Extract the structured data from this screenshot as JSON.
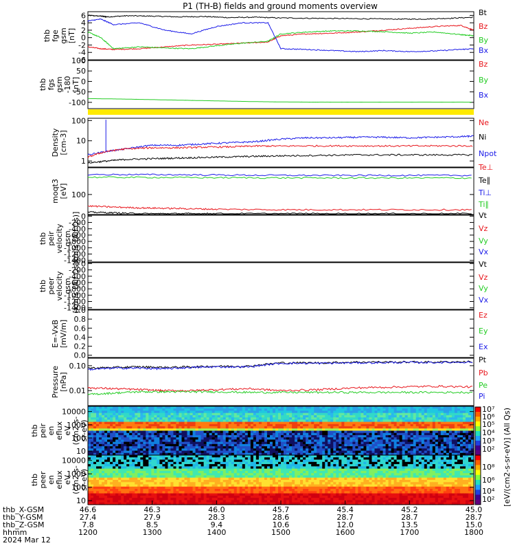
{
  "title": "P1 (TH-B) fields and ground moments overview",
  "colors": {
    "black": "#000000",
    "red": "#e8151b",
    "green": "#22cc22",
    "blue": "#1a1ae8",
    "yellow": "#ffea00"
  },
  "chart_data": [
    {
      "type": "line",
      "ylabel": [
        "thb",
        "fge",
        "gsm",
        "[nT]"
      ],
      "ylim": [
        -6,
        7
      ],
      "yticks": [
        "6",
        "4",
        "2",
        "0",
        "-2",
        "-4",
        "-6"
      ],
      "legend": [
        "Bt",
        "Bz",
        "By",
        "Bx"
      ],
      "series": [
        {
          "name": "Bt",
          "color": "black",
          "x": [
            1200,
            1220,
            1230,
            1260,
            1300,
            1340,
            1380,
            1420,
            1460,
            1500,
            1560,
            1620,
            1680,
            1720,
            1760,
            1800
          ],
          "values": [
            6.0,
            5.8,
            5.6,
            5.9,
            5.8,
            5.6,
            5.7,
            5.4,
            5.5,
            5.3,
            5.2,
            5.1,
            5.0,
            5.0,
            5.2,
            5.5
          ]
        },
        {
          "name": "Bz",
          "color": "red",
          "x": [
            1200,
            1220,
            1240,
            1280,
            1320,
            1360,
            1400,
            1440,
            1480,
            1500,
            1540,
            1580,
            1620,
            1660,
            1700,
            1740,
            1780,
            1800
          ],
          "values": [
            -2.5,
            -3.0,
            -3.2,
            -3.0,
            -2.5,
            -2.0,
            -1.8,
            -1.5,
            -1.2,
            0.5,
            1.0,
            1.2,
            1.5,
            2.0,
            2.5,
            3.0,
            3.3,
            2.0
          ]
        },
        {
          "name": "By",
          "color": "green",
          "x": [
            1200,
            1220,
            1240,
            1280,
            1320,
            1360,
            1400,
            1440,
            1480,
            1500,
            1540,
            1580,
            1620,
            1660,
            1700,
            1740,
            1780,
            1800
          ],
          "values": [
            1.5,
            0.0,
            -3.0,
            -2.5,
            -2.8,
            -3.0,
            -2.2,
            -1.5,
            -1.0,
            1.0,
            1.5,
            1.8,
            1.8,
            1.6,
            1.2,
            1.5,
            0.8,
            0.5
          ]
        },
        {
          "name": "Bx",
          "color": "blue",
          "x": [
            1200,
            1220,
            1240,
            1280,
            1320,
            1360,
            1400,
            1440,
            1480,
            1500,
            1540,
            1580,
            1620,
            1660,
            1700,
            1740,
            1780,
            1800
          ],
          "values": [
            4.5,
            5.0,
            3.5,
            4.0,
            2.0,
            1.0,
            3.0,
            4.0,
            4.0,
            -3.0,
            -3.2,
            -3.5,
            -3.8,
            -3.5,
            -3.8,
            -3.6,
            -3.2,
            -3.0
          ]
        }
      ]
    },
    {
      "type": "line",
      "ylabel": [
        "thb",
        "fgs",
        "gsm",
        "-180",
        "[nT]"
      ],
      "ylim": [
        -130,
        100
      ],
      "yticks": [
        "100",
        "50",
        "0",
        "-50",
        "-100"
      ],
      "legend": [
        "Bz",
        "By",
        "Bx"
      ],
      "series": [
        {
          "name": "By",
          "color": "green",
          "x": [
            1200,
            1250,
            1300,
            1350,
            1400,
            1450,
            1500,
            1550,
            1600,
            1700,
            1800
          ],
          "values": [
            -82,
            -84,
            -87,
            -90,
            -93,
            -96,
            -98,
            -99,
            -99,
            -99,
            -99
          ]
        }
      ]
    },
    {
      "type": "line",
      "ylabel": [
        "Density",
        "[cm-3]"
      ],
      "yscale": "log",
      "ylim": [
        0.5,
        130
      ],
      "yticks": [
        "100",
        "10",
        "1"
      ],
      "legend": [
        "Ne",
        "Ni",
        "Npot"
      ],
      "series": [
        {
          "name": "Npot",
          "color": "blue",
          "x": [
            1200,
            1230,
            1260,
            1300,
            1340,
            1380,
            1420,
            1460,
            1500,
            1540,
            1580,
            1620,
            1660,
            1700,
            1740,
            1780,
            1800
          ],
          "values": [
            2.0,
            3.0,
            4.0,
            6.0,
            6.0,
            7.0,
            8.0,
            9.0,
            12.0,
            14.0,
            14.0,
            15.0,
            15.0,
            14.0,
            15.0,
            16.0,
            17.0
          ]
        },
        {
          "name": "Ne",
          "color": "red",
          "x": [
            1200,
            1230,
            1260,
            1300,
            1340,
            1380,
            1420,
            1460,
            1500,
            1560,
            1620,
            1680,
            1740,
            1800
          ],
          "values": [
            1.5,
            3.0,
            4.0,
            4.5,
            4.5,
            4.8,
            5.0,
            5.5,
            5.5,
            5.6,
            5.6,
            5.5,
            5.6,
            5.6
          ]
        },
        {
          "name": "Ni",
          "color": "black",
          "x": [
            1200,
            1230,
            1260,
            1300,
            1340,
            1380,
            1420,
            1460,
            1500,
            1560,
            1620,
            1680,
            1740,
            1800
          ],
          "values": [
            0.8,
            1.0,
            1.2,
            1.3,
            1.4,
            1.5,
            1.6,
            1.7,
            1.8,
            1.9,
            2.0,
            2.0,
            2.0,
            2.0
          ]
        }
      ]
    },
    {
      "type": "line",
      "ylabel": [
        "moqt3",
        "[eV]"
      ],
      "yscale": "log",
      "ylim": [
        9,
        2500
      ],
      "yticks": [
        "100"
      ],
      "legend": [
        "Te⊥",
        "Te∥",
        "Ti⊥",
        "Ti∥"
      ],
      "series": [
        {
          "name": "Ti⊥",
          "color": "blue",
          "x": [
            1200,
            1300,
            1400,
            1500,
            1600,
            1700,
            1800
          ],
          "values": [
            1100,
            1100,
            1050,
            1000,
            1000,
            1000,
            1000
          ]
        },
        {
          "name": "Ti∥",
          "color": "green",
          "x": [
            1200,
            1300,
            1400,
            1500,
            1600,
            1700,
            1800
          ],
          "values": [
            800,
            780,
            760,
            740,
            730,
            730,
            730
          ]
        },
        {
          "name": "Te⊥",
          "color": "red",
          "x": [
            1200,
            1240,
            1280,
            1320,
            1360,
            1400,
            1500,
            1600,
            1700,
            1800
          ],
          "values": [
            25,
            22,
            20,
            19,
            18,
            17,
            16,
            16,
            16,
            16
          ]
        },
        {
          "name": "Te∥",
          "color": "black",
          "x": [
            1200,
            1240,
            1280,
            1320,
            1360,
            1400,
            1500,
            1600,
            1700,
            1800
          ],
          "values": [
            12,
            11,
            10,
            10,
            10,
            10,
            10,
            10,
            10,
            10
          ]
        }
      ]
    },
    {
      "type": "line",
      "ylabel": [
        "thb",
        "peir",
        "velocity",
        "gsm",
        "[km/s (All Qs)]"
      ],
      "ylim": [
        -1450,
        30
      ],
      "yticks": [
        "0",
        "-200",
        "-400",
        "-600",
        "-800",
        "-1000",
        "-1200",
        "-1400"
      ],
      "legend": [
        "Vt",
        "Vz",
        "Vy",
        "Vx"
      ],
      "series": []
    },
    {
      "type": "line",
      "ylabel": [
        "thb",
        "peer",
        "velocity",
        "gsm",
        "[km/s (All Qs)]"
      ],
      "ylim": [
        -1450,
        30
      ],
      "yticks": [
        "0",
        "-200",
        "-400",
        "-600",
        "-800",
        "-1000",
        "-1200",
        "-1400"
      ],
      "legend": [
        "Vt",
        "Vz",
        "Vy",
        "Vx"
      ],
      "series": []
    },
    {
      "type": "line",
      "ylabel": [
        "E=-VxB",
        "[mV/m]"
      ],
      "ylim": [
        -0.05,
        1.0
      ],
      "yticks": [
        "1.0",
        "0.8",
        "0.6",
        "0.4",
        "0.2",
        "0.0"
      ],
      "legend": [
        "Ez",
        "Ey",
        "Ex"
      ],
      "series": []
    },
    {
      "type": "line",
      "ylabel": [
        "Pressure",
        "[nPa]"
      ],
      "yscale": "log",
      "ylim": [
        0.0025,
        0.2
      ],
      "yticks": [
        "0.10",
        "0.01"
      ],
      "legend": [
        "Pt",
        "Pb",
        "Pe",
        "Pi"
      ],
      "series": [
        {
          "name": "Pt",
          "color": "black",
          "x": [
            1200,
            1240,
            1280,
            1320,
            1360,
            1400,
            1450,
            1500,
            1560,
            1620,
            1680,
            1740,
            1800
          ],
          "values": [
            0.08,
            0.085,
            0.09,
            0.085,
            0.09,
            0.095,
            0.095,
            0.13,
            0.13,
            0.14,
            0.14,
            0.14,
            0.145
          ]
        },
        {
          "name": "Pi",
          "color": "blue",
          "x": [
            1200,
            1240,
            1280,
            1320,
            1360,
            1400,
            1450,
            1500,
            1560,
            1620,
            1680,
            1740,
            1800
          ],
          "values": [
            0.07,
            0.08,
            0.08,
            0.075,
            0.085,
            0.09,
            0.09,
            0.125,
            0.125,
            0.13,
            0.135,
            0.135,
            0.14
          ]
        },
        {
          "name": "Pb",
          "color": "red",
          "x": [
            1200,
            1240,
            1280,
            1320,
            1360,
            1400,
            1450,
            1500,
            1560,
            1620,
            1680,
            1740,
            1800
          ],
          "values": [
            0.013,
            0.012,
            0.011,
            0.01,
            0.01,
            0.011,
            0.012,
            0.01,
            0.011,
            0.013,
            0.014,
            0.015,
            0.014
          ]
        },
        {
          "name": "Pe",
          "color": "green",
          "x": [
            1200,
            1240,
            1280,
            1320,
            1360,
            1400,
            1450,
            1500,
            1560,
            1620,
            1680,
            1740,
            1800
          ],
          "values": [
            0.007,
            0.008,
            0.009,
            0.009,
            0.009,
            0.009,
            0.0085,
            0.0085,
            0.0085,
            0.0085,
            0.0085,
            0.0085,
            0.0085
          ]
        }
      ]
    },
    {
      "type": "heatmap",
      "ylabel": [
        "thb",
        "peir",
        "en",
        "eflux",
        "eV",
        "(cm2-s-",
        "sr-eV)"
      ],
      "yscale": "log",
      "ylim": [
        5,
        25000
      ],
      "yticks": [
        "10000",
        "1000",
        "100",
        "10"
      ]
    },
    {
      "type": "heatmap",
      "ylabel": [
        "thb",
        "peer",
        "en",
        "eflux",
        "eV",
        "(cm2-s-",
        "sr-eV)"
      ],
      "yscale": "log",
      "ylim": [
        5,
        25000
      ],
      "yticks": [
        "10000",
        "1000",
        "100",
        "10"
      ]
    }
  ],
  "colorbars": {
    "label": "[eV/(cm2-s-sr-eV)] (All Qs)",
    "ion_ticks": [
      "10⁷",
      "10⁶",
      "10⁵",
      "10⁴",
      "10³",
      "10²"
    ],
    "electron_ticks": [
      "10⁸",
      "10⁶",
      "10⁴",
      "10²"
    ]
  },
  "xaxis": {
    "row_labels": [
      "thb_X-GSM",
      "thb_Y-GSM",
      "thb_Z-GSM",
      "hhmm",
      "2024 Mar 12"
    ],
    "times": [
      "1200",
      "1300",
      "1400",
      "1500",
      "1600",
      "1700",
      "1800"
    ],
    "x_gsm": [
      "46.6",
      "46.3",
      "46.0",
      "45.7",
      "45.4",
      "45.2",
      "45.0"
    ],
    "y_gsm": [
      "27.4",
      "27.9",
      "28.3",
      "28.6",
      "28.7",
      "28.7",
      "28.7"
    ],
    "z_gsm": [
      "7.8",
      "8.5",
      "9.4",
      "10.6",
      "12.0",
      "13.5",
      "15.0"
    ],
    "xlim": [
      1200,
      1800
    ]
  }
}
